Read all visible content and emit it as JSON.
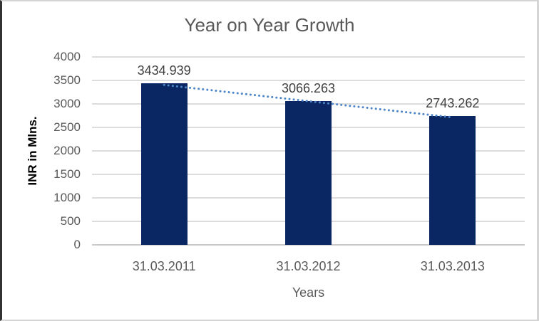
{
  "chart_data": {
    "type": "bar",
    "title": "Year on Year Growth",
    "categories": [
      "31.03.2011",
      "31.03.2012",
      "31.03.2013"
    ],
    "values": [
      3434.939,
      3066.263,
      2743.262
    ],
    "data_labels": [
      "3434.939",
      "3066.263",
      "2743.262"
    ],
    "xlabel": "Years",
    "ylabel": "INR in Mlns.",
    "ylim": [
      0,
      4000
    ],
    "yticks": [
      0,
      500,
      1000,
      1500,
      2000,
      2500,
      3000,
      3500,
      4000
    ],
    "grid": true,
    "legend": "none",
    "colors": {
      "bar": "#0a2663",
      "trendline": "#4e86c8",
      "gridline": "#dcdcdc",
      "axis_text": "#595959",
      "data_label_text": "#3f3f3f",
      "title_text": "#595959",
      "y_axis_title_text": "#000000"
    },
    "trendline": {
      "type": "linear",
      "style": "dotted",
      "from_value": 3434.939,
      "to_value": 2743.262
    }
  }
}
